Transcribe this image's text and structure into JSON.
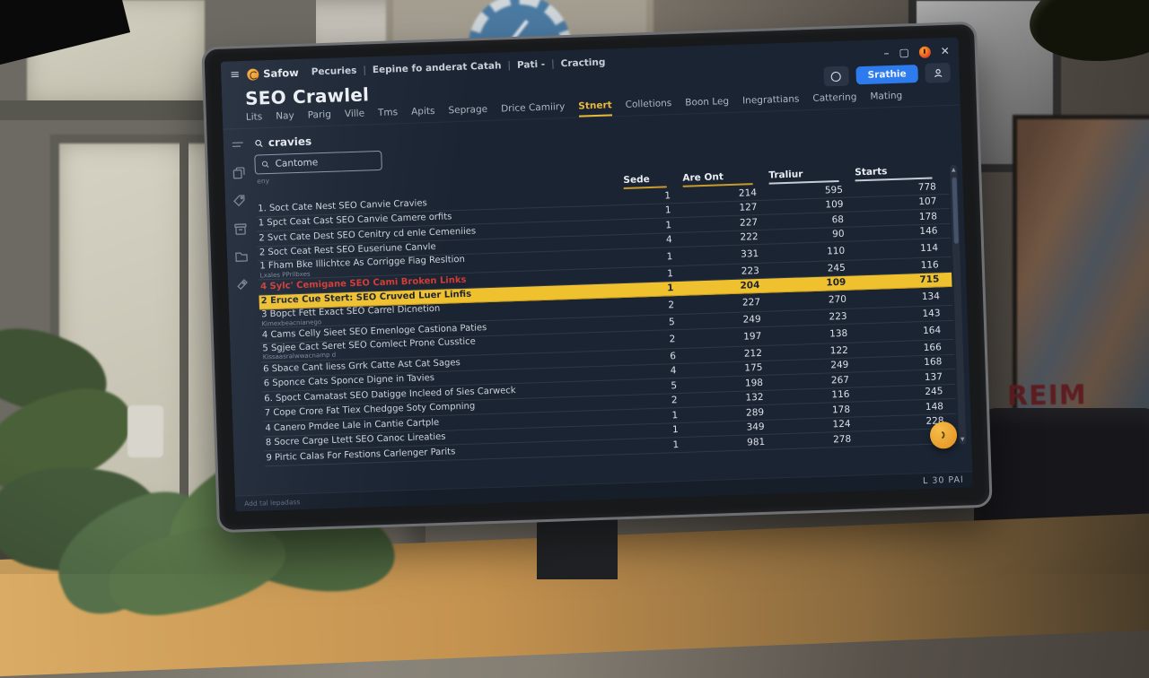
{
  "scene": {
    "wall_text": "REIM"
  },
  "window_controls": {
    "minimize": "–",
    "maximize": "▢",
    "close": "✕"
  },
  "titlebar": {
    "breadcrumb": [
      "Pecuries",
      "Eepine fo anderat Catah",
      "Pati -",
      "Cracting"
    ]
  },
  "header": {
    "logo_text": "Safow",
    "primary_action": "Srathie"
  },
  "page": {
    "title": "SEO Crawlel"
  },
  "tabs": {
    "items": [
      "Lits",
      "Nay",
      "Parig",
      "Ville",
      "Tms",
      "Apits",
      "Seprage",
      "Drice Camiiry",
      "Stnert",
      "Colletions",
      "Boon Leg",
      "Inegrattians",
      "Cattering",
      "Mating"
    ],
    "active_index": 8
  },
  "sidebar": {
    "icons": [
      "menu-icon",
      "pages-icon",
      "tag-icon",
      "archive-icon",
      "folder-icon",
      "ticket-icon"
    ]
  },
  "toolbar": {
    "section_label": "cravies",
    "search_value": "Cantome",
    "micro_label": "eny"
  },
  "table": {
    "columns": [
      {
        "label": "Sede",
        "underline": "accent"
      },
      {
        "label": "Are Ont",
        "underline": "accent"
      },
      {
        "label": "Traliur",
        "underline": "light"
      },
      {
        "label": "Starts",
        "underline": "light"
      }
    ],
    "rows": [
      {
        "name": "1. Soct Cate Nest SEO Canvie Cravies",
        "values": [
          1,
          214,
          595,
          778
        ]
      },
      {
        "name": "1 Spct Ceat Cast SEO Canvie Camere orfits",
        "values": [
          1,
          127,
          109,
          107
        ]
      },
      {
        "name": "2 Svct Cate Dest SEO Cenitry cd enle Cemeniies",
        "values": [
          1,
          227,
          68,
          178
        ]
      },
      {
        "name": "2 Soct Ceat Rest SEO Euseriune Canvle",
        "values": [
          4,
          222,
          90,
          146
        ]
      },
      {
        "name": "1 Fham Bke Illichtce As Corrigge Fiag Resltion",
        "sub": "Lxales PPrilbxes",
        "values": [
          1,
          331,
          110,
          114
        ]
      },
      {
        "name": "4 Sylc' Cemigane SEO Cami Broken Links",
        "variant": "danger",
        "values": [
          1,
          223,
          245,
          116
        ]
      },
      {
        "name": "2 Eruce Cue Stert: SEO Cruved Luer Linfis",
        "variant": "highlight",
        "values": [
          1,
          204,
          109,
          715
        ]
      },
      {
        "name": "3 Bopct Fett Exact SEO Carrel Dicnetion",
        "sub": "Kimexbeacnianego",
        "values": [
          2,
          227,
          270,
          134
        ]
      },
      {
        "name": "4 Cams Celly Sieet SEO Emenloge Castiona Paties",
        "values": [
          5,
          249,
          223,
          143
        ]
      },
      {
        "name": "5 Sgjee Cact Seret SEO Comlect Prone Cusstice",
        "sub": "Kissaasralwwacnamp d",
        "values": [
          2,
          197,
          138,
          164
        ]
      },
      {
        "name": "6 Sbace Cant liess Grrk Catte Ast Cat Sages",
        "values": [
          6,
          212,
          122,
          166
        ]
      },
      {
        "name": "6 Sponce Cats Sponce Digne in Tavies",
        "values": [
          4,
          175,
          249,
          168
        ]
      },
      {
        "name": "6. Spoct Camatast SEO Datigge Incleed of Sies Carweck",
        "values": [
          5,
          198,
          267,
          137
        ]
      },
      {
        "name": "7 Cope Crore Fat Tiex Chedgge Soty Compning",
        "values": [
          2,
          132,
          116,
          245
        ]
      },
      {
        "name": "4 Canero Pmdee Lale in Cantie Cartple",
        "values": [
          1,
          289,
          178,
          148
        ]
      },
      {
        "name": "8 Socre Carge Ltett SEO Canoc Lireaties",
        "values": [
          1,
          349,
          124,
          228
        ]
      },
      {
        "name": "9 Pirtic Calas For Festions Carlenger Parits",
        "values": [
          1,
          981,
          278,
          98
        ]
      }
    ]
  },
  "statusbar": {
    "left": "Add tal lepadass",
    "right": "L 30 PAl"
  },
  "colors": {
    "accent_yellow": "#e8b93c",
    "highlight_row": "#f0c12f",
    "danger_red": "#d23b34",
    "primary_blue": "#2e7bed",
    "logo_orange": "#e88a14",
    "fab_orange": "#e08f1e",
    "screen_bg": "#1b2432"
  }
}
